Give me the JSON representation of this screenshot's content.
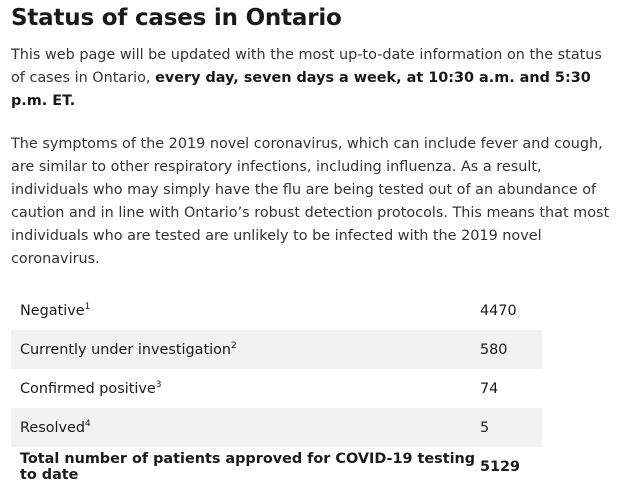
{
  "page": {
    "title": "Status of cases in Ontario",
    "intro_text": "This web page will be updated with the most up-to-date information on the status of cases in Ontario, ",
    "intro_bold": "every day, seven days a week, at 10:30 a.m. and 5:30 p.m. ET.",
    "symptoms_text": "The symptoms of the 2019 novel coronavirus, which can include fever and cough, are similar to other respiratory infections, including influenza. As a result, individuals who may simply have the flu are being tested out of an abundance of caution and in line with Ontario’s robust detection protocols. This means that most individuals who are tested are unlikely to be infected with the 2019 novel coronavirus."
  },
  "table": {
    "rows": [
      {
        "label": "Negative",
        "note": "1",
        "value": "4470"
      },
      {
        "label": "Currently under investigation",
        "note": "2",
        "value": "580"
      },
      {
        "label": "Confirmed positive",
        "note": "3",
        "value": "74"
      },
      {
        "label": "Resolved",
        "note": "4",
        "value": "5"
      }
    ],
    "total": {
      "label": "Total number of patients approved for COVID-19 testing to date",
      "value": "5129"
    }
  }
}
